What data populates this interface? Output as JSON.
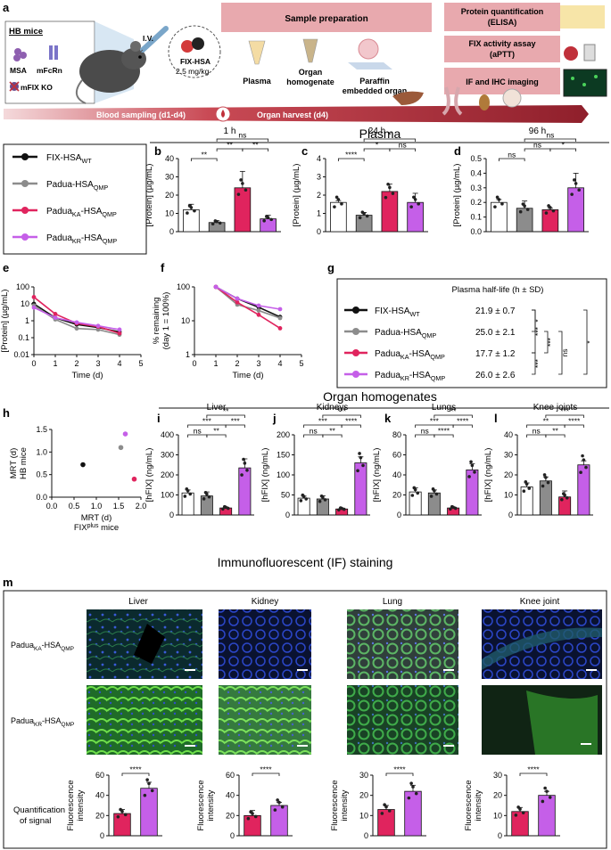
{
  "panel_letters": {
    "a": "a",
    "b": "b",
    "c": "c",
    "d": "d",
    "e": "e",
    "f": "f",
    "g": "g",
    "h": "h",
    "i": "i",
    "j": "j",
    "k": "k",
    "l": "l",
    "m": "m"
  },
  "schematic": {
    "hb_mice": "HB mice",
    "msa": "MSA",
    "mfcrn": "mFcRn",
    "mfix_ko": "mFIX KO",
    "iv": "I.V.",
    "drug": "FIX-HSA",
    "dose": "2.5 mg/kg",
    "sample_prep": "Sample preparation",
    "plasma": "Plasma",
    "organ_homog_1": "Organ",
    "organ_homog_2": "homogenate",
    "paraffin_1": "Paraffin",
    "paraffin_2": "embedded organ",
    "elisa_1": "Protein quantification",
    "elisa_2": "(ELISA)",
    "aptt_1": "FIX activity assay",
    "aptt_2": "(aPTT)",
    "ifihc": "IF and IHC imaging",
    "blood_sampling": "Blood sampling (d1-d4)",
    "organ_harvest": "Organ harvest (d4)"
  },
  "headers": {
    "plasma": "Plasma",
    "organ_homogenates": "Organ homogenates",
    "if_staining": "Immunofluorescent (IF) staining"
  },
  "legend": {
    "items": [
      {
        "base": "FIX-HSA",
        "sub": "WT",
        "color": "#111111"
      },
      {
        "base": "Padua-HSA",
        "sub": "QMP",
        "color": "#8c8c8c"
      },
      {
        "base": "Padua",
        "sub1": "KA",
        "mid": "-HSA",
        "sub": "QMP",
        "color": "#e0245e"
      },
      {
        "base": "Padua",
        "sub1": "KR",
        "mid": "-HSA",
        "sub": "QMP",
        "color": "#c55fe8"
      }
    ]
  },
  "colors": {
    "wt": "#ffffff",
    "qmp": "#8c8c8c",
    "ka": "#e0245e",
    "kr": "#c55fe8",
    "dark": "#111111",
    "schematic_band": "#c94a55",
    "box_fill": "#e8a9ae"
  },
  "chart_data": [
    {
      "id": "b",
      "type": "bar",
      "title": "1 h",
      "ylabel": "[Protein] (µg/mL)",
      "ylim": [
        0,
        40
      ],
      "yticks": [
        0,
        10,
        20,
        30,
        40
      ],
      "values": [
        12,
        5,
        24,
        7
      ],
      "errors": [
        3,
        1,
        9,
        2
      ],
      "brackets": [
        {
          "from": 0,
          "to": 1,
          "text": "**",
          "level": 0
        },
        {
          "from": 1,
          "to": 2,
          "text": "**",
          "level": 1
        },
        {
          "from": 2,
          "to": 3,
          "text": "**",
          "level": 1
        },
        {
          "from": 1,
          "to": 3,
          "text": "ns",
          "level": 2
        }
      ]
    },
    {
      "id": "c",
      "type": "bar",
      "title": "24 h",
      "ylabel": "[Protein] (µg/mL)",
      "ylim": [
        0,
        4
      ],
      "yticks": [
        0,
        1,
        2,
        3,
        4
      ],
      "values": [
        1.6,
        0.9,
        2.2,
        1.6
      ],
      "errors": [
        0.1,
        0.15,
        0.4,
        0.5
      ],
      "brackets": [
        {
          "from": 0,
          "to": 1,
          "text": "****",
          "level": 0
        },
        {
          "from": 1,
          "to": 2,
          "text": "*",
          "level": 1
        },
        {
          "from": 2,
          "to": 3,
          "text": "ns",
          "level": 1
        },
        {
          "from": 1,
          "to": 3,
          "text": "*",
          "level": 2
        }
      ]
    },
    {
      "id": "d",
      "type": "bar",
      "title": "96 h",
      "ylabel": "[Protein] (µg/mL)",
      "ylim": [
        0,
        0.5
      ],
      "yticks": [
        0,
        0.1,
        0.2,
        0.3,
        0.4,
        0.5
      ],
      "ytick_labels": [
        "0.0",
        "0.1",
        "0.2",
        "0.3",
        "0.4",
        "0.5"
      ],
      "values": [
        0.2,
        0.16,
        0.15,
        0.3
      ],
      "errors": [
        0.02,
        0.05,
        0.01,
        0.1
      ],
      "brackets": [
        {
          "from": 0,
          "to": 1,
          "text": "ns",
          "level": 0
        },
        {
          "from": 1,
          "to": 2,
          "text": "ns",
          "level": 1
        },
        {
          "from": 2,
          "to": 3,
          "text": "*",
          "level": 1
        },
        {
          "from": 1,
          "to": 3,
          "text": "ns",
          "level": 2
        }
      ]
    },
    {
      "id": "e",
      "type": "line",
      "ylabel": "[Protein] (µg/mL)",
      "xlabel": "Time (d)",
      "log": true,
      "ylim": [
        0.01,
        100
      ],
      "yticks": [
        0.01,
        0.1,
        1,
        10,
        100
      ],
      "ytick_labels": [
        "0.01",
        "0.1",
        "1",
        "10",
        "100"
      ],
      "xlim": [
        0,
        5
      ],
      "xticks": [
        0,
        1,
        2,
        3,
        4,
        5
      ],
      "series": [
        {
          "x": [
            0,
            1,
            2,
            3,
            4
          ],
          "y": [
            10,
            1.5,
            0.6,
            0.4,
            0.22
          ],
          "color": "#111111"
        },
        {
          "x": [
            0,
            1,
            2,
            3,
            4
          ],
          "y": [
            8,
            1.2,
            0.35,
            0.3,
            0.15
          ],
          "color": "#8c8c8c"
        },
        {
          "x": [
            0,
            1,
            2,
            3,
            4
          ],
          "y": [
            25,
            2.5,
            0.7,
            0.45,
            0.18
          ],
          "color": "#e0245e"
        },
        {
          "x": [
            0,
            1,
            2,
            3,
            4
          ],
          "y": [
            6,
            1.5,
            0.8,
            0.5,
            0.3
          ],
          "color": "#c55fe8"
        }
      ]
    },
    {
      "id": "f",
      "type": "line",
      "ylabel": "% remaining",
      "ylabel2": "(day 1 = 100%)",
      "xlabel": "Time (d)",
      "log": true,
      "ylim": [
        1,
        100
      ],
      "yticks": [
        1,
        10,
        100
      ],
      "ytick_labels": [
        "1",
        "10",
        "100"
      ],
      "xlim": [
        0,
        5
      ],
      "xticks": [
        0,
        1,
        2,
        3,
        4,
        5
      ],
      "series": [
        {
          "x": [
            1,
            2,
            3,
            4
          ],
          "y": [
            100,
            45,
            25,
            13
          ],
          "color": "#111111"
        },
        {
          "x": [
            1,
            2,
            3,
            4
          ],
          "y": [
            100,
            30,
            20,
            12
          ],
          "color": "#8c8c8c"
        },
        {
          "x": [
            1,
            2,
            3,
            4
          ],
          "y": [
            100,
            35,
            15,
            6
          ],
          "color": "#e0245e"
        },
        {
          "x": [
            1,
            2,
            3,
            4
          ],
          "y": [
            100,
            45,
            28,
            22
          ],
          "color": "#c55fe8"
        }
      ]
    },
    {
      "id": "g",
      "type": "table",
      "title": "Plasma half-life (h ± SD)",
      "rows": [
        {
          "base": "FIX-HSA",
          "sub": "WT",
          "value": "21.9 ± 0.7",
          "color": "#111111"
        },
        {
          "base": "Padua-HSA",
          "sub": "QMP",
          "value": "25.0 ± 2.1",
          "color": "#8c8c8c"
        },
        {
          "base": "Padua",
          "sub1": "KA",
          "mid": "-HSA",
          "sub": "QMP",
          "value": "17.7 ± 1.2",
          "color": "#e0245e"
        },
        {
          "base": "Padua",
          "sub1": "KR",
          "mid": "-HSA",
          "sub": "QMP",
          "value": "26.0 ± 2.6",
          "color": "#c55fe8"
        }
      ],
      "brackets": [
        {
          "from": 0,
          "to": 1,
          "text": "*"
        },
        {
          "from": 1,
          "to": 2,
          "text": "***"
        },
        {
          "from": 0,
          "to": 2,
          "text": "***"
        },
        {
          "from": 2,
          "to": 3,
          "text": "***"
        },
        {
          "from": 1,
          "to": 3,
          "text": "ns"
        },
        {
          "from": 0,
          "to": 3,
          "text": "*"
        }
      ]
    },
    {
      "id": "h",
      "type": "scatter",
      "xlabel": "MRT (d)",
      "xlabel2": "FIX",
      "xlabel2_sup": "plus",
      "xlabel2_end": " mice",
      "ylabel": "MRT (d)",
      "ylabel2": "HB mice",
      "xlim": [
        0,
        2
      ],
      "ylim": [
        0,
        1.5
      ],
      "xticks": [
        0,
        0.5,
        1,
        1.5,
        2
      ],
      "xtick_labels": [
        "0.0",
        "0.5",
        "1.0",
        "1.5",
        "2.0"
      ],
      "yticks": [
        0,
        0.5,
        1,
        1.5
      ],
      "ytick_labels": [
        "0.0",
        "0.5",
        "1.0",
        "1.5"
      ],
      "points": [
        {
          "x": 0.7,
          "y": 0.72,
          "color": "#111111"
        },
        {
          "x": 1.55,
          "y": 1.1,
          "color": "#8c8c8c"
        },
        {
          "x": 1.85,
          "y": 0.4,
          "color": "#e0245e"
        },
        {
          "x": 1.65,
          "y": 1.4,
          "color": "#c55fe8"
        }
      ]
    },
    {
      "id": "i",
      "type": "bar",
      "title": "Liver",
      "ylabel": "[hFIX] (ng/mL)",
      "ylim": [
        0,
        400
      ],
      "yticks": [
        0,
        100,
        200,
        300,
        400
      ],
      "values": [
        110,
        95,
        35,
        235
      ],
      "errors": [
        15,
        20,
        5,
        45
      ],
      "brackets": [
        {
          "from": 0,
          "to": 1,
          "text": "ns",
          "level": 0
        },
        {
          "from": 1,
          "to": 2,
          "text": "**",
          "level": 0
        },
        {
          "from": 2,
          "to": 3,
          "text": "***",
          "level": 1
        },
        {
          "from": 0,
          "to": 2,
          "text": "***",
          "level": 1
        },
        {
          "from": 1,
          "to": 3,
          "text": "**",
          "level": 2
        }
      ]
    },
    {
      "id": "j",
      "type": "bar",
      "title": "Kidneys",
      "ylabel": "[hFIX] (ng/mL)",
      "ylim": [
        0,
        200
      ],
      "yticks": [
        0,
        50,
        100,
        150,
        200
      ],
      "values": [
        42,
        40,
        15,
        130
      ],
      "errors": [
        5,
        8,
        2,
        15
      ],
      "brackets": [
        {
          "from": 0,
          "to": 1,
          "text": "ns",
          "level": 0
        },
        {
          "from": 1,
          "to": 2,
          "text": "**",
          "level": 0
        },
        {
          "from": 2,
          "to": 3,
          "text": "****",
          "level": 1
        },
        {
          "from": 0,
          "to": 2,
          "text": "***",
          "level": 1
        },
        {
          "from": 1,
          "to": 3,
          "text": "***",
          "level": 2
        }
      ]
    },
    {
      "id": "k",
      "type": "bar",
      "title": "Lungs",
      "ylabel": "[hFIX] (ng/mL)",
      "ylim": [
        0,
        80
      ],
      "yticks": [
        0,
        20,
        40,
        60,
        80
      ],
      "values": [
        23,
        22,
        7,
        45
      ],
      "errors": [
        4,
        3,
        1,
        6
      ],
      "brackets": [
        {
          "from": 0,
          "to": 1,
          "text": "ns",
          "level": 0
        },
        {
          "from": 1,
          "to": 2,
          "text": "****",
          "level": 0
        },
        {
          "from": 2,
          "to": 3,
          "text": "****",
          "level": 1
        },
        {
          "from": 0,
          "to": 2,
          "text": "***",
          "level": 1
        },
        {
          "from": 1,
          "to": 3,
          "text": "**",
          "level": 2
        }
      ]
    },
    {
      "id": "l",
      "type": "bar",
      "title": "Knee joints",
      "ylabel": "[hFIX] (ng/mL)",
      "ylim": [
        0,
        40
      ],
      "yticks": [
        0,
        10,
        20,
        30,
        40
      ],
      "values": [
        14,
        17,
        9,
        25
      ],
      "errors": [
        2,
        2,
        3,
        2
      ],
      "brackets": [
        {
          "from": 0,
          "to": 1,
          "text": "ns",
          "level": 0
        },
        {
          "from": 1,
          "to": 2,
          "text": "**",
          "level": 0
        },
        {
          "from": 2,
          "to": 3,
          "text": "****",
          "level": 1
        },
        {
          "from": 0,
          "to": 2,
          "text": "**",
          "level": 1
        },
        {
          "from": 1,
          "to": 3,
          "text": "***",
          "level": 2
        }
      ]
    },
    {
      "id": "m1",
      "type": "bar",
      "ylabel": "Fluorescence",
      "ylabel2": "intensity",
      "ylim": [
        0,
        60
      ],
      "yticks": [
        0,
        20,
        40,
        60
      ],
      "values": [
        22,
        47
      ],
      "errors": [
        4,
        6
      ],
      "colors": [
        "#e0245e",
        "#c55fe8"
      ],
      "brackets": [
        {
          "from": 0,
          "to": 1,
          "text": "****",
          "level": 0
        }
      ]
    },
    {
      "id": "m2",
      "type": "bar",
      "ylabel": "Fluorescence",
      "ylabel2": "intensity",
      "ylim": [
        0,
        60
      ],
      "yticks": [
        0,
        20,
        40,
        60
      ],
      "values": [
        20,
        30
      ],
      "errors": [
        5,
        3
      ],
      "colors": [
        "#e0245e",
        "#c55fe8"
      ],
      "brackets": [
        {
          "from": 0,
          "to": 1,
          "text": "****",
          "level": 0
        }
      ]
    },
    {
      "id": "m3",
      "type": "bar",
      "ylabel": "Fluorescence",
      "ylabel2": "intensity",
      "ylim": [
        0,
        30
      ],
      "yticks": [
        0,
        10,
        20,
        30
      ],
      "values": [
        13,
        22
      ],
      "errors": [
        2,
        3
      ],
      "colors": [
        "#e0245e",
        "#c55fe8"
      ],
      "brackets": [
        {
          "from": 0,
          "to": 1,
          "text": "****",
          "level": 0
        }
      ]
    },
    {
      "id": "m4",
      "type": "bar",
      "ylabel": "Fluorescence",
      "ylabel2": "intensity",
      "ylim": [
        0,
        30
      ],
      "yticks": [
        0,
        10,
        20,
        30
      ],
      "values": [
        12,
        20
      ],
      "errors": [
        2,
        2
      ],
      "colors": [
        "#e0245e",
        "#c55fe8"
      ],
      "brackets": [
        {
          "from": 0,
          "to": 1,
          "text": "****",
          "level": 0
        }
      ]
    }
  ],
  "if_panel": {
    "columns": [
      "Liver",
      "Kidney",
      "Lung",
      "Knee joint"
    ],
    "row1": {
      "base": "Padua",
      "sub1": "KA",
      "mid": "-HSA",
      "sub": "QMP"
    },
    "row2": {
      "base": "Padua",
      "sub1": "KR",
      "mid": "-HSA",
      "sub": "QMP"
    },
    "quant_1": "Quantification",
    "quant_2": "of signal"
  }
}
